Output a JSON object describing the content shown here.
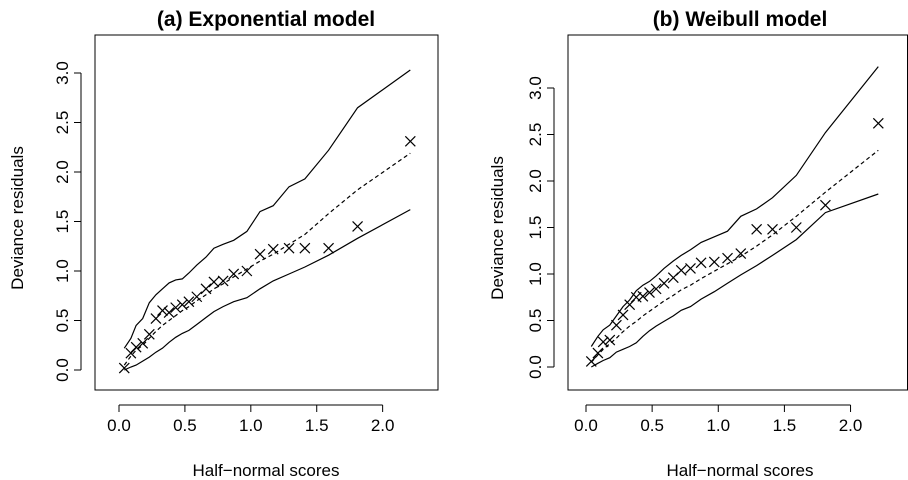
{
  "chart_data": [
    {
      "type": "scatter",
      "panel": "a",
      "title": "(a) Exponential model",
      "xlabel": "Half−normal scores",
      "ylabel": "Deviance residuals",
      "xlim": [
        0,
        2.2
      ],
      "ylim": [
        0,
        3.0
      ],
      "xticks": [
        "0.0",
        "0.5",
        "1.0",
        "1.5",
        "2.0"
      ],
      "yticks": [
        "0.0",
        "0.5",
        "1.0",
        "1.5",
        "2.0",
        "2.5",
        "3.0"
      ],
      "grid": false,
      "series": [
        {
          "kind": "points",
          "marker": "x",
          "x": [
            0.04,
            0.09,
            0.13,
            0.18,
            0.23,
            0.28,
            0.33,
            0.38,
            0.43,
            0.48,
            0.53,
            0.59,
            0.66,
            0.72,
            0.79,
            0.87,
            0.97,
            1.07,
            1.17,
            1.29,
            1.41,
            1.59,
            1.81,
            2.21
          ],
          "y": [
            0.02,
            0.17,
            0.23,
            0.27,
            0.36,
            0.52,
            0.6,
            0.58,
            0.63,
            0.66,
            0.69,
            0.74,
            0.82,
            0.89,
            0.9,
            0.97,
            1.0,
            1.17,
            1.22,
            1.23,
            1.23,
            1.23,
            1.45,
            2.31
          ]
        },
        {
          "kind": "upper-envelope",
          "line": "solid",
          "x": [
            0.04,
            0.09,
            0.13,
            0.18,
            0.23,
            0.28,
            0.33,
            0.38,
            0.43,
            0.48,
            0.53,
            0.59,
            0.66,
            0.72,
            0.79,
            0.87,
            0.97,
            1.07,
            1.17,
            1.29,
            1.41,
            1.59,
            1.81,
            2.21
          ],
          "y": [
            0.22,
            0.32,
            0.45,
            0.52,
            0.68,
            0.76,
            0.82,
            0.88,
            0.91,
            0.92,
            0.98,
            1.06,
            1.14,
            1.23,
            1.27,
            1.31,
            1.4,
            1.6,
            1.66,
            1.85,
            1.93,
            2.22,
            2.65,
            3.03
          ]
        },
        {
          "kind": "median",
          "line": "dashed",
          "x": [
            0.04,
            0.09,
            0.13,
            0.18,
            0.23,
            0.28,
            0.33,
            0.38,
            0.43,
            0.48,
            0.53,
            0.59,
            0.66,
            0.72,
            0.79,
            0.87,
            0.97,
            1.07,
            1.17,
            1.29,
            1.41,
            1.59,
            1.81,
            2.21
          ],
          "y": [
            0.05,
            0.14,
            0.2,
            0.25,
            0.32,
            0.39,
            0.45,
            0.5,
            0.55,
            0.6,
            0.64,
            0.7,
            0.76,
            0.82,
            0.87,
            0.94,
            1.02,
            1.1,
            1.17,
            1.27,
            1.37,
            1.58,
            1.82,
            2.19
          ]
        },
        {
          "kind": "lower-envelope",
          "line": "solid",
          "x": [
            0.04,
            0.09,
            0.13,
            0.18,
            0.23,
            0.28,
            0.33,
            0.38,
            0.43,
            0.48,
            0.53,
            0.59,
            0.66,
            0.72,
            0.79,
            0.87,
            0.97,
            1.07,
            1.17,
            1.29,
            1.41,
            1.59,
            1.81,
            2.21
          ],
          "y": [
            0.0,
            0.03,
            0.05,
            0.09,
            0.13,
            0.18,
            0.22,
            0.28,
            0.33,
            0.37,
            0.4,
            0.46,
            0.53,
            0.59,
            0.64,
            0.69,
            0.73,
            0.82,
            0.9,
            0.97,
            1.04,
            1.16,
            1.33,
            1.62
          ]
        }
      ]
    },
    {
      "type": "scatter",
      "panel": "b",
      "title": "(b) Weibull model",
      "xlabel": "Half−normal scores",
      "ylabel": "Deviance residuals",
      "xlim": [
        0,
        2.2
      ],
      "ylim": [
        0,
        3.0
      ],
      "xticks": [
        "0.0",
        "0.5",
        "1.0",
        "1.5",
        "2.0"
      ],
      "yticks": [
        "0.0",
        "0.5",
        "1.0",
        "1.5",
        "2.0",
        "2.5",
        "3.0"
      ],
      "grid": false,
      "series": [
        {
          "kind": "points",
          "marker": "x",
          "x": [
            0.04,
            0.09,
            0.13,
            0.18,
            0.23,
            0.28,
            0.33,
            0.38,
            0.43,
            0.48,
            0.53,
            0.59,
            0.66,
            0.72,
            0.79,
            0.87,
            0.97,
            1.07,
            1.17,
            1.29,
            1.41,
            1.59,
            1.81,
            2.21
          ],
          "y": [
            0.06,
            0.15,
            0.27,
            0.29,
            0.45,
            0.56,
            0.67,
            0.75,
            0.76,
            0.8,
            0.84,
            0.9,
            0.96,
            1.04,
            1.06,
            1.12,
            1.13,
            1.17,
            1.22,
            1.48,
            1.48,
            1.5,
            1.74,
            2.62
          ]
        },
        {
          "kind": "upper-envelope",
          "line": "solid",
          "x": [
            0.04,
            0.09,
            0.13,
            0.18,
            0.23,
            0.28,
            0.33,
            0.38,
            0.43,
            0.48,
            0.53,
            0.59,
            0.66,
            0.72,
            0.79,
            0.87,
            0.97,
            1.07,
            1.17,
            1.29,
            1.41,
            1.59,
            1.81,
            2.21
          ],
          "y": [
            0.22,
            0.33,
            0.4,
            0.45,
            0.55,
            0.65,
            0.72,
            0.82,
            0.88,
            0.92,
            0.98,
            1.06,
            1.14,
            1.2,
            1.26,
            1.34,
            1.4,
            1.46,
            1.62,
            1.7,
            1.82,
            2.06,
            2.52,
            3.23
          ]
        },
        {
          "kind": "median",
          "line": "dashed",
          "x": [
            0.04,
            0.09,
            0.13,
            0.18,
            0.23,
            0.28,
            0.33,
            0.38,
            0.43,
            0.48,
            0.53,
            0.59,
            0.66,
            0.72,
            0.79,
            0.87,
            0.97,
            1.07,
            1.17,
            1.29,
            1.41,
            1.59,
            1.81,
            2.21
          ],
          "y": [
            0.05,
            0.13,
            0.19,
            0.25,
            0.31,
            0.38,
            0.44,
            0.49,
            0.55,
            0.6,
            0.65,
            0.71,
            0.77,
            0.83,
            0.88,
            0.95,
            1.03,
            1.11,
            1.19,
            1.3,
            1.42,
            1.62,
            1.88,
            2.33
          ]
        },
        {
          "kind": "lower-envelope",
          "line": "solid",
          "x": [
            0.04,
            0.09,
            0.13,
            0.18,
            0.23,
            0.28,
            0.33,
            0.38,
            0.43,
            0.48,
            0.53,
            0.59,
            0.66,
            0.72,
            0.79,
            0.87,
            0.97,
            1.07,
            1.17,
            1.29,
            1.41,
            1.59,
            1.81,
            2.21
          ],
          "y": [
            0.0,
            0.04,
            0.07,
            0.1,
            0.16,
            0.19,
            0.22,
            0.26,
            0.33,
            0.39,
            0.44,
            0.49,
            0.55,
            0.61,
            0.65,
            0.73,
            0.81,
            0.9,
            0.99,
            1.09,
            1.2,
            1.37,
            1.66,
            1.86
          ]
        }
      ]
    }
  ]
}
